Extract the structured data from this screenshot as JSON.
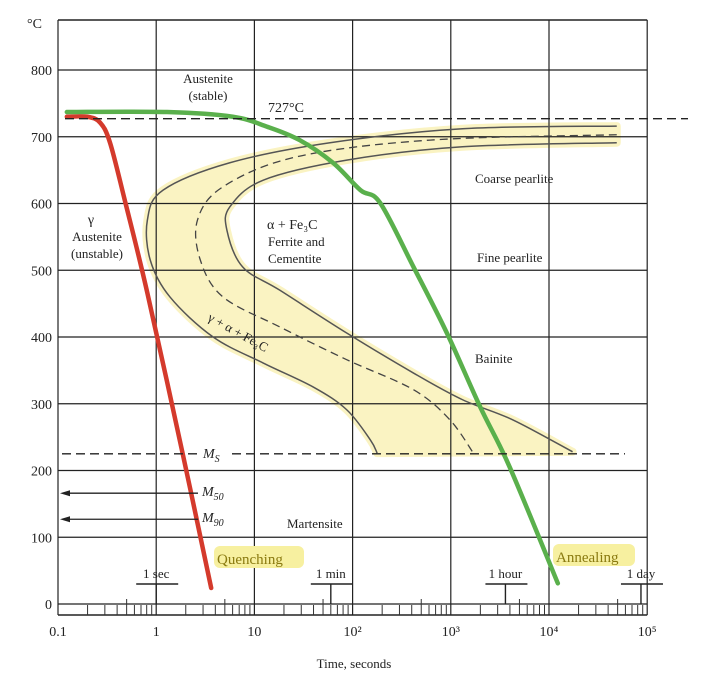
{
  "chart_data": {
    "type": "line",
    "title": "",
    "xlabel": "Time, seconds",
    "ylabel": "°C",
    "x_scale": "log10",
    "xlim_log10": [
      -1,
      5
    ],
    "ylim": [
      0,
      875
    ],
    "grid": true,
    "x_ticks": [
      {
        "log10": -1,
        "label": "0.1"
      },
      {
        "log10": 0,
        "label": "1"
      },
      {
        "log10": 1,
        "label": "10"
      },
      {
        "log10": 2,
        "label": "10²"
      },
      {
        "log10": 3,
        "label": "10³"
      },
      {
        "log10": 4,
        "label": "10⁴"
      },
      {
        "log10": 5,
        "label": "10⁵"
      }
    ],
    "y_ticks": [
      0,
      100,
      200,
      300,
      400,
      500,
      600,
      700,
      800
    ],
    "y_tick_labels": [
      "0",
      "100",
      "200",
      "300",
      "400",
      "500",
      "600",
      "700",
      "800"
    ],
    "time_markers": [
      {
        "seconds": 1,
        "label": "1 sec"
      },
      {
        "seconds": 60,
        "label": "1 min"
      },
      {
        "seconds": 3600,
        "label": "1 hour"
      },
      {
        "seconds": 86400,
        "label": "1 day"
      }
    ],
    "eutectoid": {
      "temp": 727,
      "label": "727°C"
    },
    "ms": {
      "temp": 225,
      "label": "M",
      "sub": "S"
    },
    "m50": {
      "temp": 166,
      "label": "M",
      "sub": "50"
    },
    "m90": {
      "temp": 127,
      "label": "M",
      "sub": "90"
    },
    "curves": {
      "start": [
        [
          4.69,
          716
        ],
        [
          3.12,
          712
        ],
        [
          1.77,
          691
        ],
        [
          0.75,
          661
        ],
        [
          0.07,
          620
        ],
        [
          -0.09,
          575
        ],
        [
          -0.06,
          515
        ],
        [
          0.14,
          460
        ],
        [
          0.58,
          400
        ],
        [
          1.09,
          361
        ],
        [
          1.6,
          325
        ],
        [
          1.94,
          291
        ],
        [
          2.18,
          246
        ],
        [
          2.25,
          226
        ]
      ],
      "middle": [
        [
          4.69,
          703
        ],
        [
          2.79,
          695
        ],
        [
          1.43,
          670
        ],
        [
          0.68,
          625
        ],
        [
          0.42,
          575
        ],
        [
          0.45,
          515
        ],
        [
          0.68,
          460
        ],
        [
          1.26,
          415
        ],
        [
          1.94,
          366
        ],
        [
          2.62,
          321
        ],
        [
          2.99,
          276
        ],
        [
          3.23,
          226
        ]
      ],
      "finish": [
        [
          4.69,
          691
        ],
        [
          3.12,
          685
        ],
        [
          1.94,
          665
        ],
        [
          1.09,
          635
        ],
        [
          0.75,
          595
        ],
        [
          0.72,
          560
        ],
        [
          0.88,
          505
        ],
        [
          1.26,
          470
        ],
        [
          1.94,
          406
        ],
        [
          2.62,
          346
        ],
        [
          3.12,
          306
        ],
        [
          3.63,
          276
        ],
        [
          4.24,
          228
        ]
      ]
    },
    "series": [
      {
        "name": "Quenching",
        "color": "#d43a2c",
        "points": [
          [
            -0.91,
            730
          ],
          [
            -0.7,
            730
          ],
          [
            -0.57,
            721
          ],
          [
            -0.47,
            691
          ],
          [
            -0.32,
            605
          ],
          [
            -0.09,
            466
          ],
          [
            0.27,
            225
          ],
          [
            0.56,
            24
          ]
        ]
      },
      {
        "name": "Annealing",
        "color": "#5ab04c",
        "points": [
          [
            -0.91,
            737
          ],
          [
            0.11,
            737
          ],
          [
            0.78,
            730
          ],
          [
            1.13,
            715
          ],
          [
            1.46,
            695
          ],
          [
            1.8,
            661
          ],
          [
            2.08,
            620
          ],
          [
            2.28,
            601
          ],
          [
            2.62,
            505
          ],
          [
            2.96,
            406
          ],
          [
            3.3,
            295
          ],
          [
            3.6,
            205
          ],
          [
            4.09,
            31
          ]
        ]
      }
    ],
    "band_color": "#faf3c2",
    "annotations": {
      "austenite_stable": [
        "Austenite",
        "(stable)"
      ],
      "gamma": "γ",
      "austenite_unstable": [
        "Austenite",
        "(unstable)"
      ],
      "alpha_fe3c": "α + Fe₃C",
      "ferrite_cementite": [
        "Ferrite and",
        "Cementite"
      ],
      "transition": "γ + α + Fe₃C",
      "coarse_pearlite": "Coarse pearlite",
      "fine_pearlite": "Fine pearlite",
      "bainite": "Bainite",
      "martensite": "Martensite",
      "quenching": "Quenching",
      "annealing": "Annealing"
    }
  }
}
